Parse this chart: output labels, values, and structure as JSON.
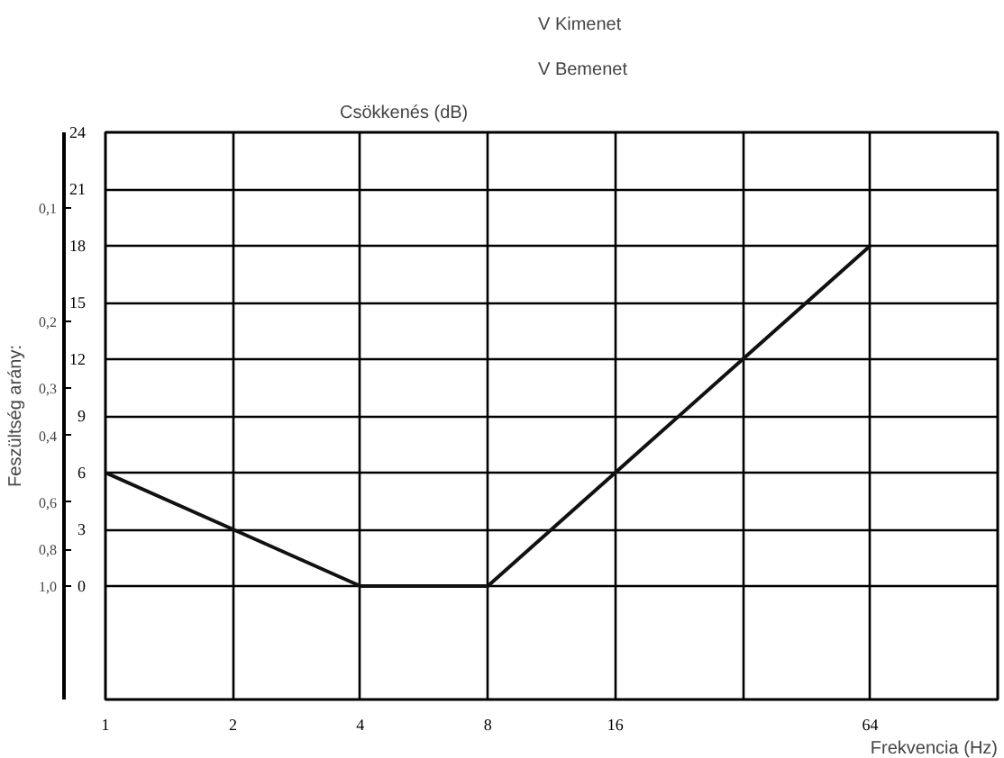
{
  "chart_data": {
    "type": "line",
    "xlabel": "Frekvencia (Hz)",
    "ylabel": "Csökkenés (dB)",
    "y2label": "Feszültség arány:",
    "annotations": [
      "V Kimenet",
      "V Bemenet"
    ],
    "categories": [
      "1",
      "2",
      "4",
      "8",
      "16",
      null,
      "64",
      null
    ],
    "series": [
      {
        "color": "#111111",
        "values": [
          6,
          3,
          0,
          0,
          6,
          12,
          18,
          null
        ]
      }
    ],
    "log": "y2",
    "ylim": [
      -6,
      24
    ],
    "yticks": [
      0,
      3,
      6,
      9,
      12,
      15,
      18,
      21,
      24
    ],
    "y2lim": [
      2.0,
      0.063
    ],
    "y2ticks": [
      {
        "value": 0.1,
        "label": "0,1"
      },
      {
        "value": 0.2,
        "label": "0,2"
      },
      {
        "value": 0.3,
        "label": "0,3"
      },
      {
        "value": 0.4,
        "label": "0,4"
      },
      {
        "value": 0.6,
        "label": "0,6"
      },
      {
        "value": 0.8,
        "label": "0,8"
      },
      {
        "value": 1.0,
        "label": "1,0"
      }
    ],
    "grid": true,
    "marker": "none",
    "line_style": "solid"
  }
}
